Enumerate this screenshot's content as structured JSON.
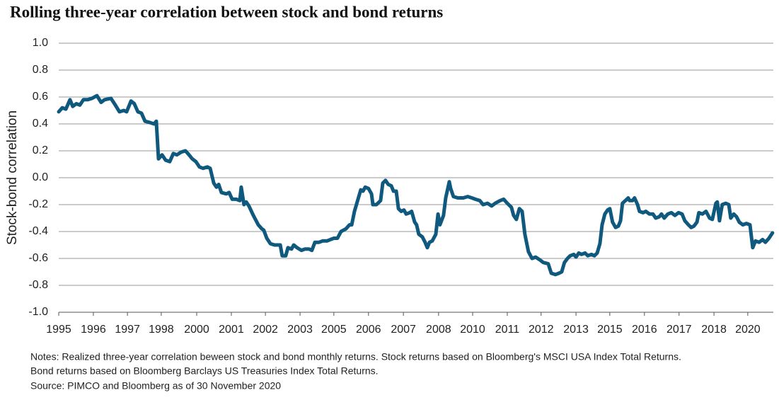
{
  "chart_data": {
    "type": "line",
    "title": "Rolling three-year correlation between stock and bond returns",
    "y_label": "Stock-bond correlation",
    "notes": [
      "Notes: Realized three-year correlation beween stock and bond monthly returns. Stock returns based on Bloomberg's MSCI USA  Index Total Returns.",
      "Bond returns based on Bloomberg Barclays US Treasuries Index Total Returns.",
      "Source: PIMCO and Bloomberg as of 30 November 2020"
    ],
    "x": [
      1995.0,
      1995.13,
      1995.26,
      1995.41,
      1995.51,
      1995.64,
      1995.77,
      1995.9,
      1996.06,
      1996.21,
      1996.39,
      1996.54,
      1996.67,
      1996.9,
      1997.06,
      1997.21,
      1997.37,
      1997.47,
      1997.63,
      1997.75,
      1997.88,
      1998.01,
      1998.14,
      1998.32,
      1998.47,
      1998.55,
      1998.63,
      1998.76,
      1998.89,
      1999.04,
      1999.17,
      1999.3,
      1999.45,
      1999.61,
      1999.74,
      1999.86,
      1999.99,
      2000.12,
      2000.25,
      2000.41,
      2000.51,
      2000.64,
      2000.74,
      2000.82,
      2000.92,
      2001.1,
      2001.2,
      2001.31,
      2001.46,
      2001.59,
      2001.64,
      2001.74,
      2001.82,
      2001.92,
      2002.08,
      2002.26,
      2002.39,
      2002.46,
      2002.57,
      2002.7,
      2002.85,
      2003.06,
      2003.13,
      2003.26,
      2003.34,
      2003.47,
      2003.55,
      2003.67,
      2003.83,
      2003.96,
      2004.11,
      2004.21,
      2004.32,
      2004.47,
      2004.6,
      2004.76,
      2004.88,
      2005.01,
      2005.14,
      2005.27,
      2005.45,
      2005.58,
      2005.66,
      2005.76,
      2005.86,
      2005.99,
      2006.07,
      2006.15,
      2006.27,
      2006.38,
      2006.43,
      2006.56,
      2006.71,
      2006.79,
      2006.89,
      2006.99,
      2007.1,
      2007.18,
      2007.28,
      2007.36,
      2007.46,
      2007.56,
      2007.64,
      2007.77,
      2007.84,
      2007.95,
      2008.02,
      2008.1,
      2008.23,
      2008.33,
      2008.41,
      2008.49,
      2008.59,
      2008.72,
      2008.8,
      2008.87,
      2009.0,
      2009.08,
      2009.21,
      2009.26,
      2009.36,
      2009.52,
      2009.72,
      2009.88,
      2010.03,
      2010.16,
      2010.32,
      2010.44,
      2010.6,
      2010.75,
      2010.88,
      2011.06,
      2011.19,
      2011.32,
      2011.47,
      2011.55,
      2011.65,
      2011.76,
      2011.86,
      2011.96,
      2012.09,
      2012.22,
      2012.35,
      2012.5,
      2012.63,
      2012.81,
      2012.92,
      2013.07,
      2013.2,
      2013.3,
      2013.4,
      2013.51,
      2013.61,
      2013.74,
      2013.82,
      2013.92,
      2014.02,
      2014.15,
      2014.25,
      2014.38,
      2014.49,
      2014.59,
      2014.69,
      2014.77,
      2014.87,
      2014.97,
      2015.05,
      2015.15,
      2015.26,
      2015.36,
      2015.44,
      2015.51,
      2015.62,
      2015.72,
      2015.77,
      2015.88,
      2015.95,
      2016.06,
      2016.13,
      2016.26,
      2016.36,
      2016.49,
      2016.62,
      2016.72,
      2016.85,
      2016.93,
      2017.03,
      2017.16,
      2017.29,
      2017.42,
      2017.55,
      2017.68,
      2017.78,
      2017.91,
      2018.01,
      2018.11,
      2018.22,
      2018.29,
      2018.42,
      2018.55,
      2018.68,
      2018.78,
      2018.91,
      2018.96,
      2019.04,
      2019.14,
      2019.27,
      2019.38,
      2019.45,
      2019.56,
      2019.66,
      2019.76,
      2019.89,
      2020.02,
      2020.15,
      2020.25,
      2020.35,
      2020.48,
      2020.61,
      2020.71,
      2020.84,
      2020.97
    ],
    "series": [
      {
        "color": "#0f587e",
        "values": [
          0.49,
          0.52,
          0.51,
          0.58,
          0.53,
          0.55,
          0.54,
          0.58,
          0.58,
          0.59,
          0.61,
          0.56,
          0.58,
          0.59,
          0.54,
          0.49,
          0.5,
          0.49,
          0.57,
          0.55,
          0.49,
          0.48,
          0.42,
          0.41,
          0.4,
          0.42,
          0.14,
          0.17,
          0.13,
          0.12,
          0.18,
          0.17,
          0.19,
          0.2,
          0.17,
          0.14,
          0.12,
          0.08,
          0.07,
          0.08,
          0.07,
          -0.04,
          -0.07,
          -0.05,
          -0.11,
          -0.12,
          -0.11,
          -0.16,
          -0.16,
          -0.17,
          -0.07,
          -0.2,
          -0.18,
          -0.21,
          -0.28,
          -0.35,
          -0.38,
          -0.39,
          -0.45,
          -0.49,
          -0.5,
          -0.5,
          -0.58,
          -0.58,
          -0.52,
          -0.53,
          -0.5,
          -0.52,
          -0.54,
          -0.53,
          -0.53,
          -0.54,
          -0.48,
          -0.48,
          -0.47,
          -0.47,
          -0.46,
          -0.45,
          -0.45,
          -0.4,
          -0.38,
          -0.35,
          -0.35,
          -0.25,
          -0.18,
          -0.09,
          -0.1,
          -0.07,
          -0.08,
          -0.12,
          -0.2,
          -0.2,
          -0.17,
          -0.04,
          -0.02,
          -0.05,
          -0.06,
          -0.1,
          -0.1,
          -0.23,
          -0.25,
          -0.24,
          -0.27,
          -0.26,
          -0.25,
          -0.33,
          -0.35,
          -0.42,
          -0.44,
          -0.48,
          -0.52,
          -0.48,
          -0.47,
          -0.42,
          -0.27,
          -0.35,
          -0.28,
          -0.15,
          -0.03,
          -0.08,
          -0.14,
          -0.15,
          -0.15,
          -0.14,
          -0.15,
          -0.16,
          -0.17,
          -0.2,
          -0.19,
          -0.21,
          -0.19,
          -0.17,
          -0.16,
          -0.19,
          -0.22,
          -0.28,
          -0.31,
          -0.23,
          -0.25,
          -0.42,
          -0.55,
          -0.6,
          -0.59,
          -0.61,
          -0.63,
          -0.64,
          -0.71,
          -0.72,
          -0.71,
          -0.7,
          -0.63,
          -0.6,
          -0.58,
          -0.57,
          -0.59,
          -0.56,
          -0.57,
          -0.56,
          -0.58,
          -0.57,
          -0.58,
          -0.56,
          -0.49,
          -0.35,
          -0.27,
          -0.24,
          -0.23,
          -0.33,
          -0.37,
          -0.36,
          -0.32,
          -0.19,
          -0.17,
          -0.15,
          -0.17,
          -0.17,
          -0.15,
          -0.2,
          -0.25,
          -0.26,
          -0.25,
          -0.27,
          -0.27,
          -0.3,
          -0.29,
          -0.27,
          -0.3,
          -0.27,
          -0.26,
          -0.28,
          -0.26,
          -0.27,
          -0.32,
          -0.35,
          -0.37,
          -0.36,
          -0.33,
          -0.26,
          -0.27,
          -0.25,
          -0.3,
          -0.31,
          -0.19,
          -0.18,
          -0.32,
          -0.2,
          -0.19,
          -0.2,
          -0.3,
          -0.27,
          -0.29,
          -0.33,
          -0.35,
          -0.34,
          -0.35,
          -0.52,
          -0.47,
          -0.48,
          -0.46,
          -0.48,
          -0.45,
          -0.41
        ]
      }
    ],
    "xlim": [
      1995,
      2021.0
    ],
    "xticks": [
      {
        "value": 1995,
        "label": "1995"
      },
      {
        "value": 1996.26,
        "label": "1996"
      },
      {
        "value": 1997.5,
        "label": "1997"
      },
      {
        "value": 1998.73,
        "label": "1998"
      },
      {
        "value": 2000.02,
        "label": "2000"
      },
      {
        "value": 2001.28,
        "label": "2001"
      },
      {
        "value": 2002.52,
        "label": "2002"
      },
      {
        "value": 2003.78,
        "label": "2003"
      },
      {
        "value": 2005.01,
        "label": "2005"
      },
      {
        "value": 2006.27,
        "label": "2006"
      },
      {
        "value": 2007.54,
        "label": "2007"
      },
      {
        "value": 2008.82,
        "label": "2008"
      },
      {
        "value": 2010.06,
        "label": "2010"
      },
      {
        "value": 2011.32,
        "label": "2011"
      },
      {
        "value": 2012.55,
        "label": "2012"
      },
      {
        "value": 2013.82,
        "label": "2013"
      },
      {
        "value": 2015.05,
        "label": "2015"
      },
      {
        "value": 2016.31,
        "label": "2016"
      },
      {
        "value": 2017.57,
        "label": "2017"
      },
      {
        "value": 2018.84,
        "label": "2018"
      },
      {
        "value": 2020.07,
        "label": "2020"
      }
    ],
    "ylim": [
      -1,
      1
    ],
    "yticks": [
      {
        "value": -1,
        "label": "-1.0"
      },
      -0.8,
      -0.6,
      -0.4,
      -0.2,
      {
        "value": 0,
        "label": "0.0"
      },
      0.2,
      0.4,
      0.6,
      0.8,
      {
        "value": 1,
        "label": "1.0"
      }
    ],
    "grid": true
  }
}
